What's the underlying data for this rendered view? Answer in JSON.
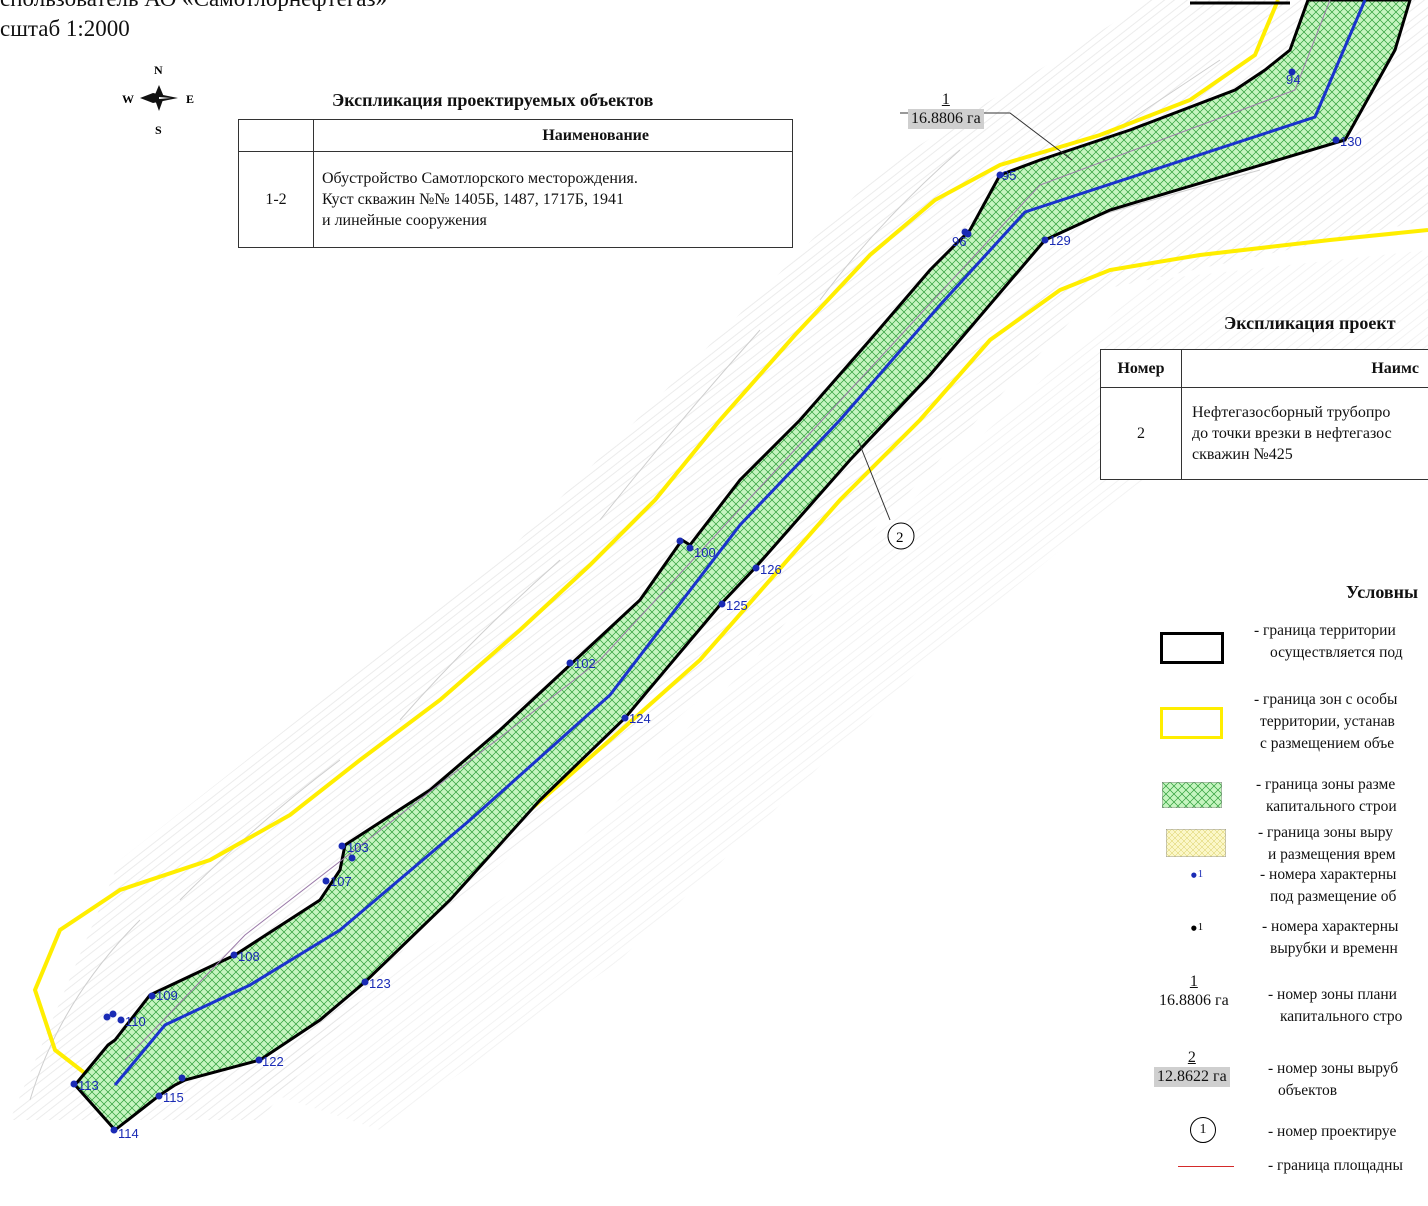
{
  "header": {
    "line1": "спользователь АО «Самотлорнефтегаз»",
    "scale": "сштаб 1:2000"
  },
  "compass": {
    "n": "N",
    "s": "S",
    "w": "W",
    "e": "E",
    "icon": "compass-rose-icon"
  },
  "table1": {
    "title": "Экспликация проектируемых объектов",
    "col_name": "Наименование",
    "row_num": "1-2",
    "row_text": [
      "Обустройство Самотлорского месторождения.",
      "Куст скважин №№ 1405Б, 1487, 1717Б, 1941",
      "и линейные сооружения"
    ]
  },
  "table2": {
    "title": "Экспликация проект",
    "col_num": "Номер",
    "col_name": "Наимс",
    "row_num": "2",
    "row_text": [
      "Нефтегазосборный трубопро",
      "до точки врезки в нефтегазос",
      "скважин №425"
    ]
  },
  "zone_label": {
    "num": "1",
    "area": "16.8806 га"
  },
  "object_marker": "2",
  "points": [
    "94",
    "95",
    "96",
    "100",
    "102",
    "103",
    "107",
    "108",
    "109",
    "110",
    "113",
    "114",
    "115",
    "122",
    "123",
    "124",
    "125",
    "126",
    "129",
    "130"
  ],
  "legend": {
    "title": "Условны",
    "items": [
      {
        "key": "boundary-black",
        "lines": [
          "- граница территории",
          "осуществляется под"
        ]
      },
      {
        "key": "boundary-yellow",
        "lines": [
          "- граница зон с особы",
          "территории, устанав",
          "с размещением объе"
        ]
      },
      {
        "key": "zone-green",
        "lines": [
          "- граница зоны разме",
          "капитального строи"
        ]
      },
      {
        "key": "zone-yellow",
        "lines": [
          "- граница зоны выру",
          "и размещения врем"
        ]
      },
      {
        "key": "point-blue",
        "sym": "1",
        "lines": [
          "- номера характерны",
          "под размещение об"
        ]
      },
      {
        "key": "point-black",
        "sym": "1",
        "lines": [
          "- номера характерны",
          "вырубки и временн"
        ]
      },
      {
        "key": "zone-num-1",
        "num": "1",
        "area": "16.8806 га",
        "lines": [
          "- номер зоны плани",
          "капитального стро"
        ]
      },
      {
        "key": "zone-num-2",
        "num": "2",
        "area": "12.8622 га",
        "lines": [
          "- номер зоны выруб",
          "объектов"
        ]
      },
      {
        "key": "object-num",
        "sym": "1",
        "lines": [
          "- номер проектируе"
        ]
      },
      {
        "key": "red-line",
        "lines": [
          "- граница площадны"
        ]
      }
    ]
  },
  "colors": {
    "corridor_fill": "#c6f5c0",
    "hatch": "#2e9e3a",
    "pipeline": "#1a33cc",
    "boundary": "#000000",
    "yellow_zone": "#ffee00",
    "point_label": "#1a2bb5",
    "red_line": "#d42a2a",
    "gray_badge": "#cfcfcf"
  }
}
